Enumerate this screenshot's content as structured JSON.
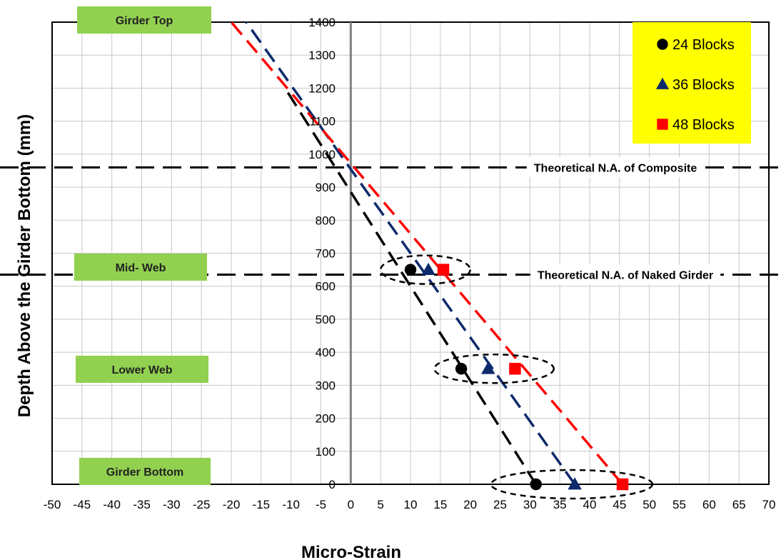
{
  "chart_data": {
    "type": "line",
    "xlabel": "Micro-Strain",
    "ylabel": "Depth Above the Girder Bottom (mm)",
    "xlim": [
      -50,
      70
    ],
    "ylim": [
      0,
      1400
    ],
    "x_ticks": [
      -50,
      -45,
      -40,
      -35,
      -30,
      -25,
      -20,
      -15,
      -10,
      -5,
      0,
      5,
      10,
      15,
      20,
      25,
      30,
      35,
      40,
      45,
      50,
      55,
      60,
      65,
      70
    ],
    "y_ticks": [
      0,
      100,
      200,
      300,
      400,
      500,
      600,
      700,
      800,
      900,
      1000,
      1100,
      1200,
      1300,
      1400
    ],
    "grid": true,
    "legend_position": "top-right",
    "legend_background": "#ffff00",
    "series": [
      {
        "name": "24 Blocks",
        "marker": "circle",
        "color": "#000000",
        "points": [
          {
            "x": 31,
            "y": 0
          },
          {
            "x": 18.5,
            "y": 350
          },
          {
            "x": 10,
            "y": 650
          }
        ],
        "trend": [
          {
            "x": 31,
            "y": 0
          },
          {
            "x": -11,
            "y": 1200
          }
        ]
      },
      {
        "name": "36 Blocks",
        "marker": "triangle",
        "color": "#0d2a6b",
        "points": [
          {
            "x": 37.5,
            "y": 0
          },
          {
            "x": 23,
            "y": 350
          },
          {
            "x": 13,
            "y": 650
          }
        ],
        "trend": [
          {
            "x": 37.5,
            "y": 0
          },
          {
            "x": -17.5,
            "y": 1400
          }
        ]
      },
      {
        "name": "48 Blocks",
        "marker": "square",
        "color": "#ff0000",
        "points": [
          {
            "x": 45.5,
            "y": 0
          },
          {
            "x": 27.5,
            "y": 350
          },
          {
            "x": 15.5,
            "y": 650
          }
        ],
        "trend": [
          {
            "x": 45.5,
            "y": 0
          },
          {
            "x": -20,
            "y": 1400
          }
        ]
      }
    ],
    "reference_lines": [
      {
        "label": "Theoretical N.A. of Composite",
        "y": 960
      },
      {
        "label": "Theoretical N.A. of Naked Girder",
        "y": 635
      }
    ],
    "zones": [
      {
        "label": "Girder Top",
        "y": 1400
      },
      {
        "label": "Mid- Web",
        "y": 650
      },
      {
        "label": "Lower Web",
        "y": 350
      },
      {
        "label": "Girder Bottom",
        "y": 0
      }
    ],
    "annotations": [
      {
        "shape": "ellipse",
        "y": 650,
        "x_range": [
          5,
          20
        ]
      },
      {
        "shape": "ellipse",
        "y": 350,
        "x_range": [
          14,
          34
        ]
      },
      {
        "shape": "ellipse",
        "y": 0,
        "x_range": [
          23.5,
          50.5
        ]
      }
    ]
  }
}
